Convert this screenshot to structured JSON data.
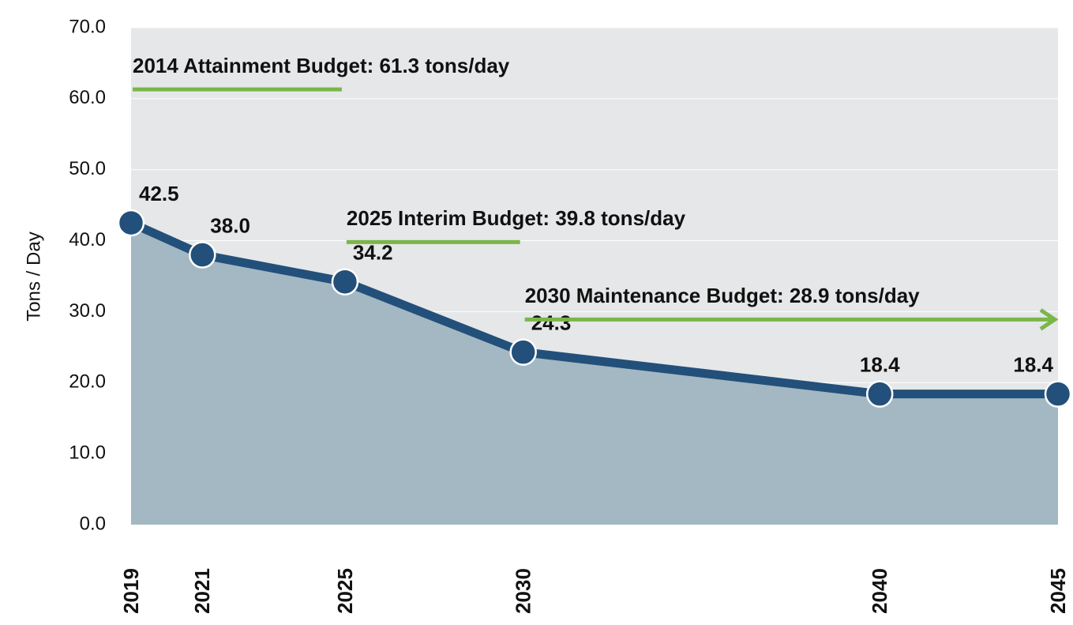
{
  "chart_data": {
    "type": "area-line",
    "y_label": "Tons / Day",
    "x": [
      2019,
      2021,
      2025,
      2030,
      2040,
      2045
    ],
    "xlim": [
      2019,
      2045
    ],
    "series": [
      {
        "color": "#22507a",
        "fill": "#a3b8c3",
        "values": [
          42.5,
          38.0,
          34.2,
          24.3,
          18.4,
          18.4
        ],
        "value_labels": [
          "42.5",
          "38.0",
          "34.2",
          "24.3",
          "18.4",
          "18.4"
        ]
      }
    ],
    "ylim": [
      0,
      70
    ],
    "yticks": [
      {
        "value": 0,
        "label": "0.0"
      },
      {
        "value": 10,
        "label": "10.0"
      },
      {
        "value": 20,
        "label": "20.0"
      },
      {
        "value": 30,
        "label": "30.0"
      },
      {
        "value": 40,
        "label": "40.0"
      },
      {
        "value": 50,
        "label": "50.0"
      },
      {
        "value": 60,
        "label": "60.0"
      },
      {
        "value": 70,
        "label": "70.0"
      }
    ],
    "grid": true,
    "budgets": [
      {
        "text": "2014 Attainment Budget: 61.3 tons/day",
        "value": 61.3,
        "x": [
          2019,
          2025
        ],
        "arrow": false
      },
      {
        "text": "2025 Interim Budget: 39.8 tons/day",
        "value": 39.8,
        "x": [
          2025,
          2030
        ],
        "arrow": false
      },
      {
        "text": "2030 Maintenance Budget: 28.9 tons/day",
        "value": 28.9,
        "x": [
          2030,
          2045
        ],
        "arrow": true
      }
    ],
    "budget_color": "#7ab648",
    "plot_background": "#e6e7e8"
  }
}
